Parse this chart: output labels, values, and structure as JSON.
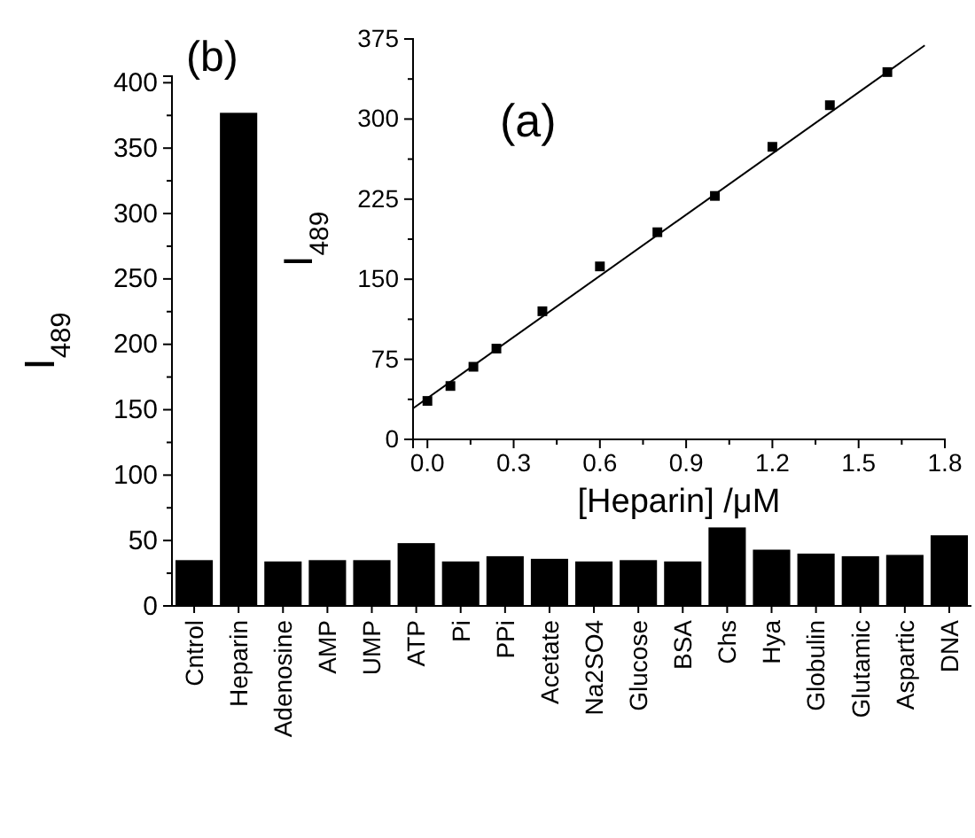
{
  "chart_data": [
    {
      "type": "bar",
      "ylabel": "I$_{489}$",
      "annotations": [
        "(b)"
      ],
      "categories": [
        "Cntrol",
        "Heparin",
        "Adenosine",
        "AMP",
        "UMP",
        "ATP",
        "Pi",
        "PPi",
        "Acetate",
        "Na2SO4",
        "Glucose",
        "BSA",
        "Chs",
        "Hya",
        "Globulin",
        "Glutamic",
        "Aspartic",
        "DNA"
      ],
      "values": [
        35,
        377,
        34,
        35,
        35,
        48,
        34,
        38,
        36,
        34,
        35,
        34,
        60,
        43,
        40,
        38,
        39,
        54
      ],
      "color": "#000000",
      "ylim": [
        0,
        405
      ],
      "yticks": [
        0,
        {
          "value": 25,
          "label": null
        },
        50,
        {
          "value": 75,
          "label": null
        },
        100,
        {
          "value": 125,
          "label": null
        },
        150,
        {
          "value": 175,
          "label": null
        },
        200,
        {
          "value": 225,
          "label": null
        },
        250,
        {
          "value": 275,
          "label": null
        },
        300,
        {
          "value": 325,
          "label": null
        },
        350,
        {
          "value": 375,
          "label": null
        },
        400
      ],
      "grid": false
    },
    {
      "type": "scatter",
      "xlabel": "[Heparin] /μM",
      "ylabel": "I$_{489}$",
      "annotations": [
        "(a)"
      ],
      "series": [
        {
          "type": "scatter",
          "color": "#000000",
          "marker": "square",
          "x": [
            0,
            0.08,
            0.16,
            0.24,
            0.4,
            0.6,
            0.8,
            1.0,
            1.2,
            1.4,
            1.6
          ],
          "values": [
            36,
            50,
            68,
            85,
            120,
            162,
            194,
            228,
            274,
            313,
            344
          ]
        },
        {
          "type": "line",
          "color": "#000000",
          "x": [
            -0.05,
            1.73
          ],
          "values": [
            29,
            369
          ]
        }
      ],
      "line_style": "solid",
      "xlim": [
        -0.05,
        1.8
      ],
      "xticks": [
        {
          "value": 0,
          "label": "0.0"
        },
        {
          "value": 0.15,
          "label": null
        },
        {
          "value": 0.3,
          "label": "0.3"
        },
        {
          "value": 0.45,
          "label": null
        },
        {
          "value": 0.6,
          "label": "0.6"
        },
        {
          "value": 0.75,
          "label": null
        },
        {
          "value": 0.9,
          "label": "0.9"
        },
        {
          "value": 1.05,
          "label": null
        },
        {
          "value": 1.2,
          "label": "1.2"
        },
        {
          "value": 1.35,
          "label": null
        },
        {
          "value": 1.5,
          "label": "1.5"
        },
        {
          "value": 1.65,
          "label": null
        },
        {
          "value": 1.8,
          "label": "1.8"
        }
      ],
      "ylim": [
        0,
        375
      ],
      "yticks": [
        0,
        {
          "value": 37.5,
          "label": null
        },
        75,
        {
          "value": 112.5,
          "label": null
        },
        150,
        {
          "value": 187.5,
          "label": null
        },
        225,
        {
          "value": 262.5,
          "label": null
        },
        300,
        {
          "value": 337.5,
          "label": null
        },
        375
      ],
      "grid": false
    }
  ]
}
